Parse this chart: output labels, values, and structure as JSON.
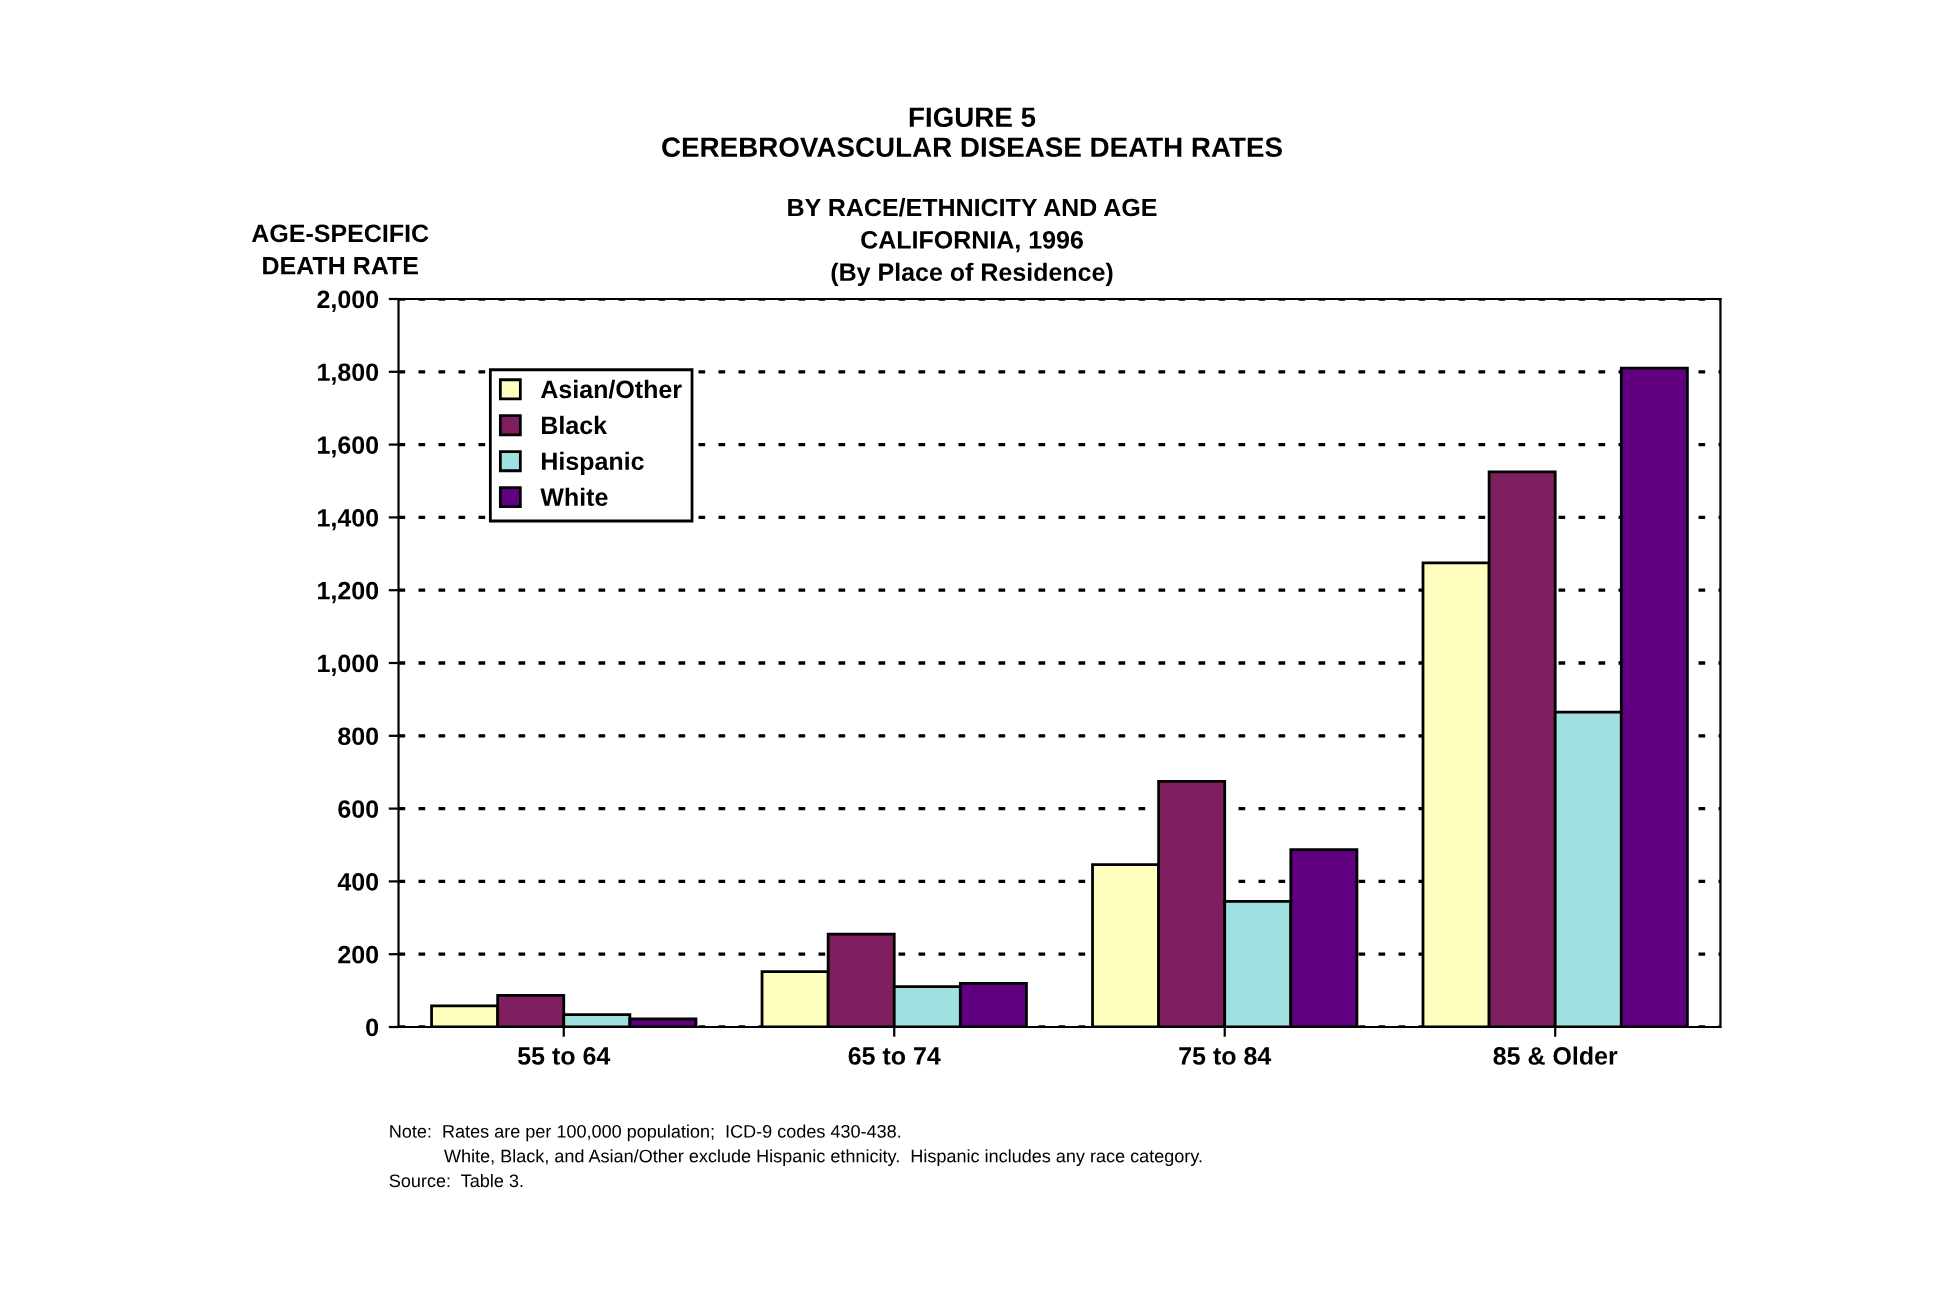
{
  "chart_data": {
    "type": "bar",
    "title": "FIGURE 5\nCEREBROVASCULAR DISEASE DEATH RATES",
    "subtitle": "BY RACE/ETHNICITY AND AGE\nCALIFORNIA, 1996\n(By Place of Residence)",
    "ylabel": "AGE-SPECIFIC\nDEATH RATE",
    "categories": [
      "55 to 64",
      "65 to 74",
      "75 to 84",
      "85 & Older"
    ],
    "series": [
      {
        "name": "Asian/Other",
        "color": "#ffffc0",
        "values": [
          58,
          152,
          446,
          1275
        ]
      },
      {
        "name": "Black",
        "color": "#7f1f5f",
        "values": [
          87,
          255,
          675,
          1525
        ]
      },
      {
        "name": "Hispanic",
        "color": "#a0e0e0",
        "values": [
          34,
          111,
          345,
          865
        ]
      },
      {
        "name": "White",
        "color": "#600080",
        "values": [
          22,
          120,
          487,
          1810
        ]
      }
    ],
    "ylim": [
      0,
      2000
    ],
    "yticks": [
      {
        "value": 0,
        "label": "0"
      },
      {
        "value": 200,
        "label": "200"
      },
      {
        "value": 400,
        "label": "400"
      },
      {
        "value": 600,
        "label": "600"
      },
      {
        "value": 800,
        "label": "800"
      },
      {
        "value": 1000,
        "label": "1,000"
      },
      {
        "value": 1200,
        "label": "1,200"
      },
      {
        "value": 1400,
        "label": "1,400"
      },
      {
        "value": 1600,
        "label": "1,600"
      },
      {
        "value": 1800,
        "label": "1,800"
      },
      {
        "value": 2000,
        "label": "2,000"
      }
    ],
    "grid": "y",
    "legend": "top left",
    "annotations": [
      "Note:  Rates are per 100,000 population;  ICD-9 codes 430-438.\n           White, Black, and Asian/Other exclude Hispanic ethnicity.  Hispanic includes any race category.",
      "Source:  Table 3."
    ]
  }
}
